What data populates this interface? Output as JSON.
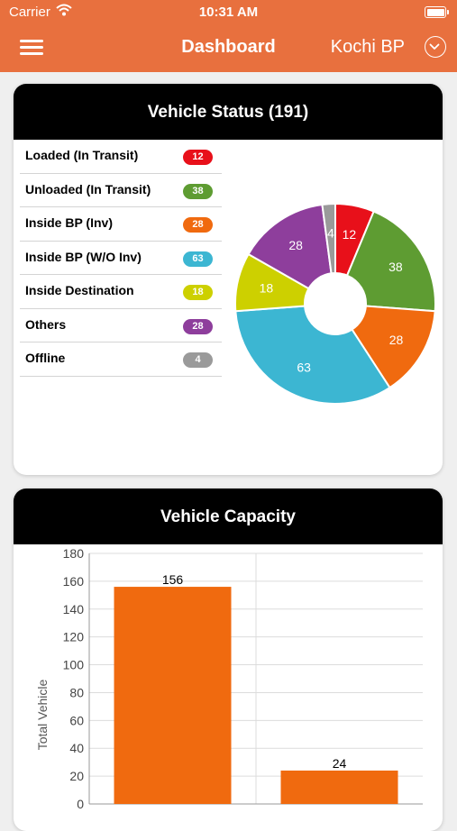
{
  "status_bar": {
    "carrier": "Carrier",
    "time": "10:31 AM"
  },
  "nav": {
    "title": "Dashboard",
    "location": "Kochi BP"
  },
  "vehicle_status": {
    "title": "Vehicle Status (191)",
    "items": [
      {
        "label": "Loaded (In Transit)",
        "count": "12",
        "color": "#e8101a"
      },
      {
        "label": "Unloaded (In Transit)",
        "count": "38",
        "color": "#5e9c32"
      },
      {
        "label": "Inside BP (Inv)",
        "count": "28",
        "color": "#f06a0f"
      },
      {
        "label": "Inside BP (W/O Inv)",
        "count": "63",
        "color": "#3cb6d2"
      },
      {
        "label": "Inside Destination",
        "count": "18",
        "color": "#cdd000"
      },
      {
        "label": "Others",
        "count": "28",
        "color": "#8e3e9c"
      },
      {
        "label": "Offline",
        "count": "4",
        "color": "#9a9a9a"
      }
    ]
  },
  "vehicle_capacity": {
    "title": "Vehicle Capacity"
  },
  "chart_data": [
    {
      "type": "pie",
      "title": "Vehicle Status (191)",
      "categories": [
        "Loaded (In Transit)",
        "Unloaded (In Transit)",
        "Inside BP (Inv)",
        "Inside BP (W/O Inv)",
        "Inside Destination",
        "Others",
        "Offline"
      ],
      "values": [
        12,
        38,
        28,
        63,
        18,
        28,
        4
      ],
      "colors": [
        "#e8101a",
        "#5e9c32",
        "#f06a0f",
        "#3cb6d2",
        "#cdd000",
        "#8e3e9c",
        "#9a9a9a"
      ],
      "donut": true
    },
    {
      "type": "bar",
      "title": "Vehicle Capacity",
      "ylabel": "Total Vehicle",
      "ylim": [
        0,
        180
      ],
      "yticks": [
        0,
        20,
        40,
        60,
        80,
        100,
        120,
        140,
        160,
        180
      ],
      "values": [
        156,
        24
      ],
      "data_labels": [
        "156",
        "24"
      ],
      "bar_color": "#f06a0f",
      "grid": true
    }
  ]
}
